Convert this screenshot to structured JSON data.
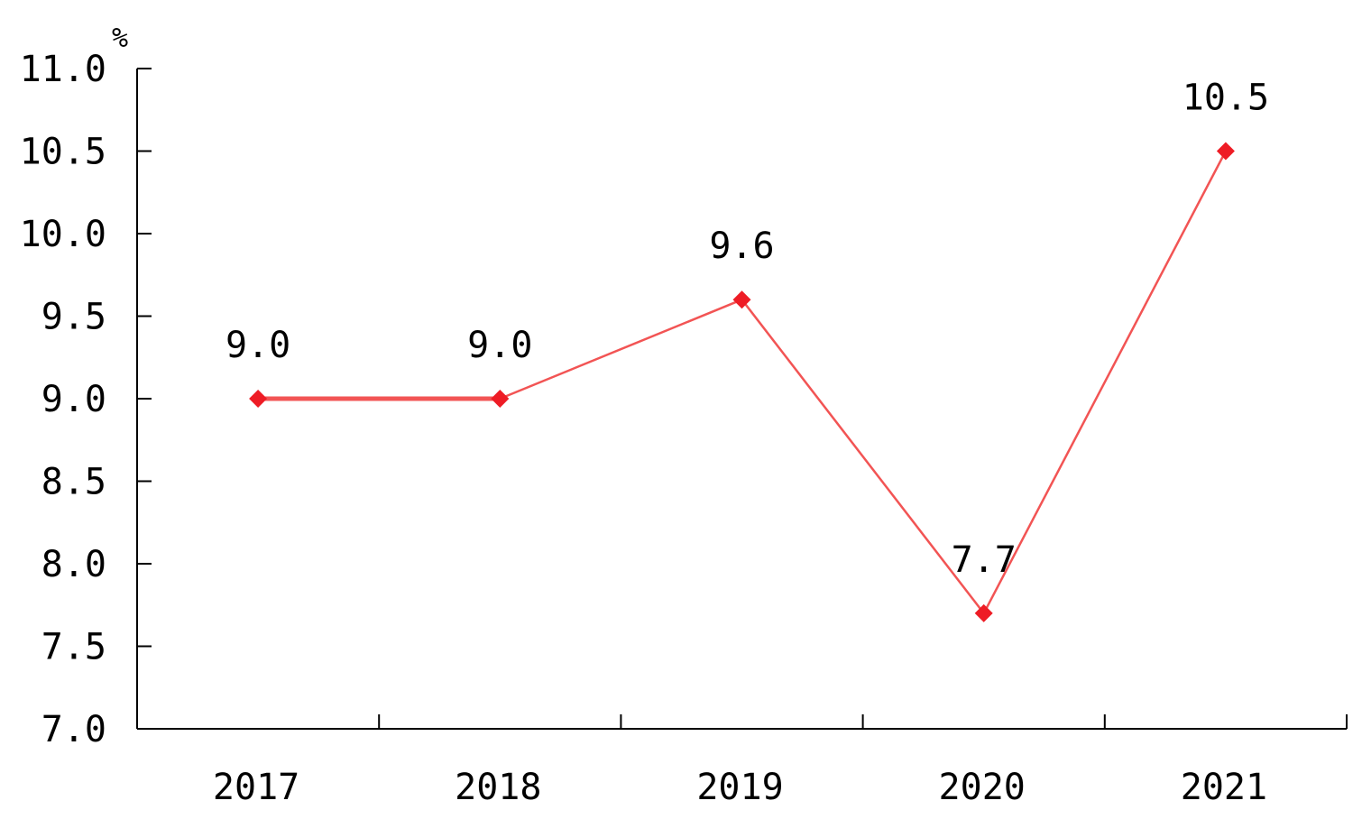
{
  "chart_data": {
    "type": "line",
    "title": "",
    "xlabel": "",
    "ylabel": "",
    "unit": "%",
    "categories": [
      "2017",
      "2018",
      "2019",
      "2020",
      "2021"
    ],
    "series": [
      {
        "values": [
          9.0,
          9.0,
          9.6,
          7.7,
          10.5
        ],
        "data_labels": [
          "9.0",
          "9.0",
          "9.6",
          "7.7",
          "10.5"
        ]
      }
    ],
    "ylim": [
      7.0,
      11.0
    ],
    "y_ticks": [
      {
        "value": 7.0,
        "label": "7.0"
      },
      {
        "value": 7.5,
        "label": "7.5"
      },
      {
        "value": 8.0,
        "label": "8.0"
      },
      {
        "value": 8.5,
        "label": "8.5"
      },
      {
        "value": 9.0,
        "label": "9.0"
      },
      {
        "value": 9.5,
        "label": "9.5"
      },
      {
        "value": 10.0,
        "label": "10.0"
      },
      {
        "value": 10.5,
        "label": "10.5"
      },
      {
        "value": 11.0,
        "label": "11.0"
      }
    ],
    "grid": false,
    "legend": "none",
    "colors": {
      "line": "#f25454",
      "marker": "#ee1c25",
      "axis": "#000000"
    }
  }
}
